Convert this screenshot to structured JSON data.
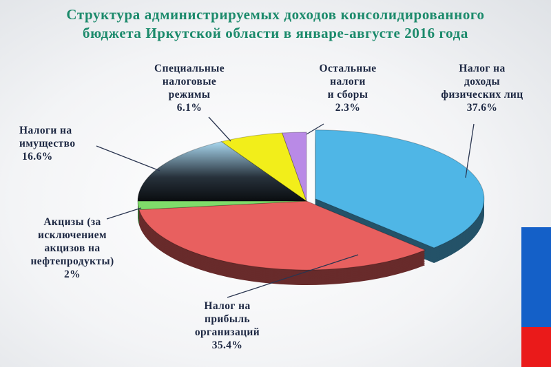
{
  "chart_data": {
    "type": "pie",
    "title": "Структура администрируемых доходов консолидированного бюджета Иркутской области в январе-августе 2016 года",
    "title_lines": [
      "Структура администрируемых доходов консолидированного",
      "бюджета Иркутской области в январе-августе 2016 года"
    ],
    "three_d": true,
    "slices": [
      {
        "label_lines": [
          "Налог на",
          "доходы",
          "физических лиц",
          "37.6%"
        ],
        "value": 37.6,
        "color": "#4fb6e6",
        "exploded": true
      },
      {
        "label_lines": [
          "Налог на",
          "прибыль",
          "организаций",
          "35.4%"
        ],
        "value": 35.4,
        "color": "#e8605f"
      },
      {
        "label_lines": [
          "Акцизы (за",
          "исключением",
          "акцизов на",
          "нефтепродукты)",
          "2%"
        ],
        "value": 2,
        "color": "#7fdc6a"
      },
      {
        "label_lines": [
          "Налоги на",
          "имущество",
          "16.6%"
        ],
        "value": 16.6,
        "color": "#2a3440"
      },
      {
        "label_lines": [
          "Специальные",
          "налоговые",
          "режимы",
          "6.1%"
        ],
        "value": 6.1,
        "color": "#f2ee1a"
      },
      {
        "label_lines": [
          "Остальные",
          "налоги",
          "и сборы",
          "2.3%"
        ],
        "value": 2.3,
        "color": "#b98ae6"
      }
    ]
  },
  "decor": {
    "stripe_colors": [
      "#ffffff",
      "#1460c8",
      "#ea1a1a"
    ]
  }
}
